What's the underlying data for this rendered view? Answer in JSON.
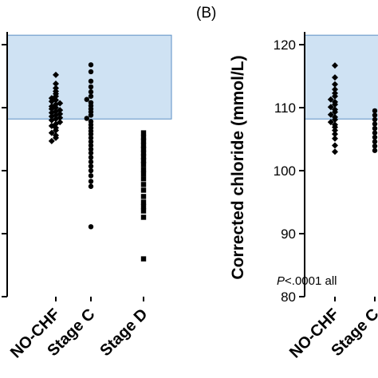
{
  "chart_data": [
    {
      "panel": "",
      "type": "scatter",
      "subtype": "dot-plot",
      "categories": [
        "NO-CHF",
        "Stage C",
        "Stage D"
      ],
      "ylabel": "",
      "ylim": [
        80,
        122
      ],
      "yticks": [],
      "normal_range_band": [
        108.2,
        121.5
      ],
      "band_color": "#cfe2f3",
      "band_border_color": "#5b8fc4",
      "annotation": "P<.0001 all",
      "annotation_parts": {
        "italic": "P",
        "rest": "<.0001 all"
      },
      "marker_color": "#000000",
      "series": [
        {
          "category": "NO-CHF",
          "marker": "diamond",
          "values": [
            115.2,
            113.8,
            113.1,
            112.6,
            112.2,
            111.8,
            111.5,
            111.2,
            111.0,
            110.7,
            110.5,
            110.2,
            110.0,
            109.8,
            109.6,
            109.4,
            109.2,
            109.0,
            108.8,
            108.6,
            108.4,
            108.2,
            108.0,
            107.7,
            107.4,
            107.1,
            106.8,
            106.4,
            106.0,
            105.6,
            105.2,
            104.7
          ]
        },
        {
          "category": "Stage C",
          "marker": "circle",
          "values": [
            116.8,
            115.7,
            114.2,
            113.3,
            112.5,
            111.8,
            111.3,
            110.8,
            110.3,
            109.8,
            109.3,
            108.8,
            108.3,
            107.8,
            107.3,
            106.8,
            106.3,
            105.8,
            105.2,
            104.6,
            104.0,
            103.4,
            102.8,
            102.1,
            101.4,
            100.7,
            100.0,
            99.2,
            98.3,
            97.5,
            91.1
          ]
        },
        {
          "category": "Stage D",
          "marker": "square",
          "values": [
            106.0,
            105.3,
            104.7,
            104.0,
            103.4,
            102.8,
            102.2,
            101.6,
            101.0,
            100.2,
            99.5,
            98.7,
            97.8,
            96.9,
            95.9,
            95.0,
            94.3,
            93.6,
            92.6,
            86.0
          ]
        }
      ]
    },
    {
      "panel": "(B)",
      "type": "scatter",
      "subtype": "dot-plot",
      "categories": [
        "NO-CHF",
        "Stage C"
      ],
      "ylabel": "Corrected chloride (mmol/L)",
      "ylim": [
        80,
        122
      ],
      "yticks": [
        80,
        90,
        100,
        110,
        120
      ],
      "normal_range_band": [
        108.2,
        121.5
      ],
      "band_color": "#cfe2f3",
      "band_border_color": "#5b8fc4",
      "marker_color": "#000000",
      "series": [
        {
          "category": "NO-CHF",
          "marker": "diamond",
          "values": [
            116.7,
            114.8,
            113.7,
            112.9,
            112.3,
            111.8,
            111.3,
            110.9,
            110.5,
            110.1,
            109.7,
            109.3,
            108.9,
            108.5,
            108.1,
            107.7,
            107.3,
            106.9,
            106.4,
            105.8,
            105.1,
            104.0,
            103.0
          ]
        },
        {
          "category": "Stage C",
          "marker": "circle",
          "values": [
            109.5,
            108.8,
            108.1,
            107.4,
            106.7,
            106.0,
            105.3,
            104.6,
            103.9,
            103.2
          ]
        }
      ]
    }
  ]
}
